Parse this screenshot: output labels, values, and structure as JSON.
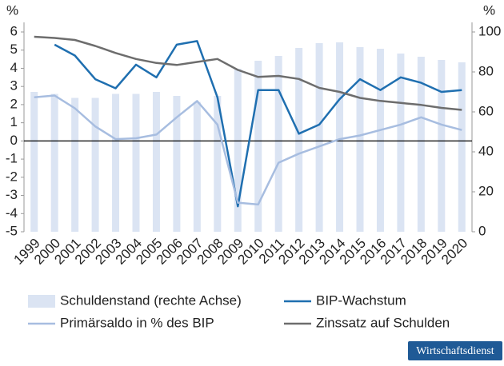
{
  "chart_data": {
    "type": "bar-line",
    "categories": [
      "1999",
      "2000",
      "2001",
      "2002",
      "2003",
      "2004",
      "2005",
      "2006",
      "2007",
      "2008",
      "2009",
      "2010",
      "2011",
      "2012",
      "2013",
      "2014",
      "2015",
      "2016",
      "2017",
      "2018",
      "2019",
      "2020"
    ],
    "ylim": [
      -5,
      6
    ],
    "yticks": [
      -5,
      -4,
      -3,
      -2,
      -1,
      0,
      1,
      2,
      3,
      4,
      5,
      6
    ],
    "y_unit": "%",
    "y2lim": [
      0,
      100
    ],
    "y2ticks": [
      0,
      20,
      40,
      60,
      80,
      100
    ],
    "y2_unit": "%",
    "series": [
      {
        "name": "Schuldenstand (rechte Achse)",
        "type": "bar",
        "axis": "y2",
        "color": "#dbe4f3",
        "values": [
          70,
          69,
          67,
          67,
          69,
          69,
          70,
          68,
          65,
          68,
          81.6,
          85.6,
          88,
          92,
          94.4,
          94.8,
          92.4,
          91.6,
          89.2,
          87.6,
          86,
          84.8
        ]
      },
      {
        "name": "BIP-Wachstum",
        "type": "line",
        "color": "#1f6fb0",
        "values": [
          null,
          5.3,
          4.7,
          3.4,
          2.9,
          4.2,
          3.5,
          5.3,
          5.5,
          2.4,
          -3.6,
          2.8,
          2.8,
          0.4,
          0.9,
          2.3,
          3.4,
          2.8,
          3.5,
          3.2,
          2.7,
          2.8
        ]
      },
      {
        "name": "Primärsaldo in % des BIP",
        "type": "line",
        "color": "#a7bde0",
        "values": [
          2.4,
          2.5,
          1.8,
          0.8,
          0.1,
          0.15,
          0.35,
          1.3,
          2.2,
          0.9,
          -3.4,
          -3.5,
          -1.2,
          -0.7,
          -0.3,
          0.1,
          0.3,
          0.6,
          0.9,
          1.3,
          0.9,
          0.6
        ]
      },
      {
        "name": "Zinssatz auf Schulden",
        "type": "line",
        "axis": "y2",
        "color": "#6d6d6d",
        "values": [
          97.6,
          97,
          96,
          93,
          89.5,
          86.5,
          84.5,
          83.5,
          85,
          86.5,
          81,
          77.5,
          78,
          76.5,
          72,
          70,
          67,
          65.5,
          64.5,
          63.5,
          62,
          61
        ]
      }
    ],
    "source": "Wirtschaftsdienst"
  }
}
